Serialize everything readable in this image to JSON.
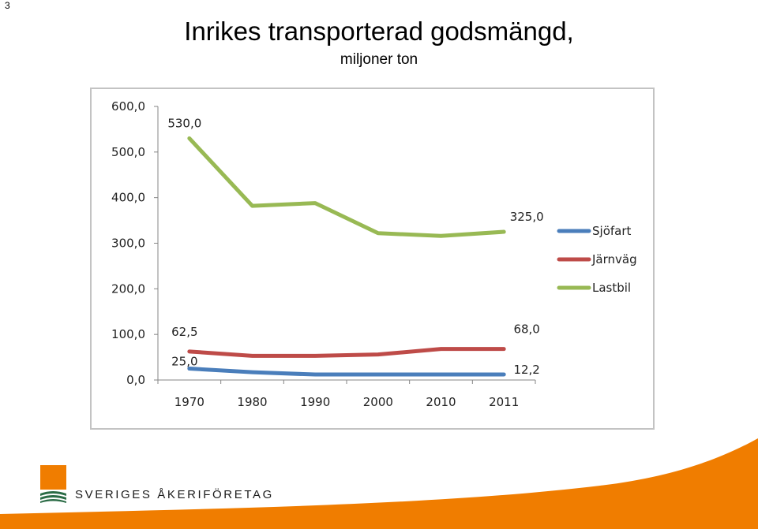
{
  "slide_number": "3",
  "title": "Inrikes transporterad godsmängd,",
  "subtitle": "miljoner ton",
  "logo_text": "SVERIGES ÅKERIFÖRETAG",
  "colors": {
    "accent_orange": "#f07d00",
    "logo_green": "#2a6b45"
  },
  "chart_data": {
    "type": "line",
    "categories": [
      "1970",
      "1980",
      "1990",
      "2000",
      "2010",
      "2011"
    ],
    "y_ticks": [
      "0,0",
      "100,0",
      "200,0",
      "300,0",
      "400,0",
      "500,0",
      "600,0"
    ],
    "ylim": [
      0,
      600
    ],
    "grid": false,
    "legend_position": "right",
    "series": [
      {
        "name": "Sjöfart",
        "color": "#4a7ebb",
        "values": [
          25.0,
          17,
          12,
          12,
          12,
          12.2
        ]
      },
      {
        "name": "Järnväg",
        "color": "#be4b48",
        "values": [
          62.5,
          53,
          53,
          56,
          68,
          68.0
        ]
      },
      {
        "name": "Lastbil",
        "color": "#98b954",
        "values": [
          530.0,
          382,
          388,
          322,
          316,
          325.0
        ]
      }
    ],
    "data_labels": [
      {
        "series": 0,
        "index": 0,
        "text": "25,0"
      },
      {
        "series": 0,
        "index": 5,
        "text": "12,2"
      },
      {
        "series": 1,
        "index": 0,
        "text": "62,5"
      },
      {
        "series": 1,
        "index": 5,
        "text": "68,0"
      },
      {
        "series": 2,
        "index": 0,
        "text": "530,0"
      },
      {
        "series": 2,
        "index": 5,
        "text": "325,0"
      }
    ]
  }
}
